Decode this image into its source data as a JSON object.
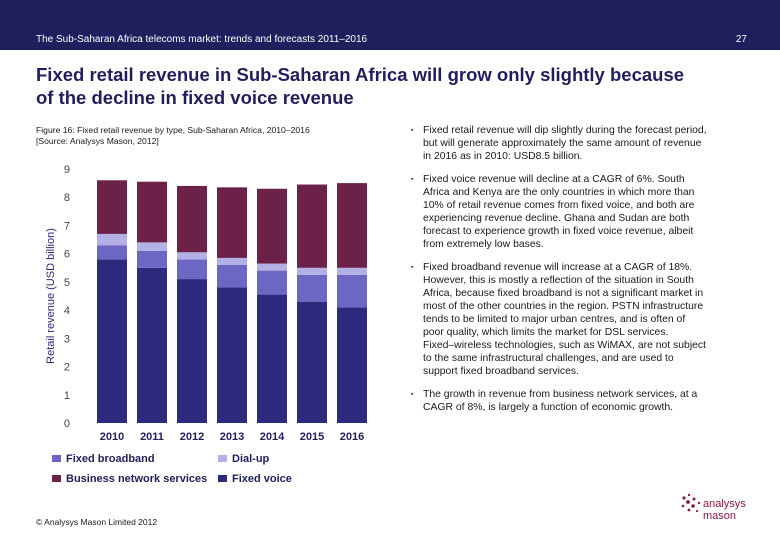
{
  "header": {
    "doc_title": "The Sub-Saharan Africa telecoms market: trends and forecasts 2011–2016",
    "page_number": "27"
  },
  "headline": {
    "line1": "Fixed retail revenue in Sub-Saharan Africa will grow only slightly because",
    "line2": "of the decline in fixed voice revenue"
  },
  "caption": {
    "line1": "Figure 16: Fixed retail revenue by type, Sub-Saharan Africa, 2010–2016",
    "line2": "[Source: Analysys Mason, 2012]"
  },
  "chart_data": {
    "type": "bar",
    "stacked": true,
    "categories": [
      "2010",
      "2011",
      "2012",
      "2013",
      "2014",
      "2015",
      "2016"
    ],
    "series": [
      {
        "name": "Fixed voice",
        "color": "#2b2a7c",
        "values": [
          5.8,
          5.5,
          5.1,
          4.8,
          4.55,
          4.3,
          4.1
        ]
      },
      {
        "name": "Fixed broadband",
        "color": "#6d67c4",
        "values": [
          0.5,
          0.6,
          0.7,
          0.8,
          0.85,
          0.95,
          1.15
        ]
      },
      {
        "name": "Dial-up",
        "color": "#b3b0e6",
        "values": [
          0.4,
          0.3,
          0.25,
          0.25,
          0.25,
          0.25,
          0.25
        ]
      },
      {
        "name": "Business network services",
        "color": "#6b2148",
        "values": [
          1.9,
          2.15,
          2.35,
          2.5,
          2.65,
          2.95,
          3.0
        ]
      }
    ],
    "ylabel": "Retail revenue (USD billion)",
    "xlabel": "",
    "ylim": [
      0,
      9
    ],
    "yticks": [
      0,
      1,
      2,
      3,
      4,
      5,
      6,
      7,
      8,
      9
    ],
    "grid": false,
    "legend_position": "bottom",
    "legend_order": [
      1,
      2,
      3,
      0
    ]
  },
  "bullets": [
    {
      "marker": "▪",
      "lines": [
        "Fixed retail revenue will dip slightly during the forecast period,",
        "but will generate approximately the same amount of revenue",
        "in 2016 as in 2010: USD8.5 billion."
      ]
    },
    {
      "marker": "▪",
      "lines": [
        "Fixed voice revenue will decline at a CAGR of 6%. South",
        "Africa and Kenya are the only countries in which more than",
        "10% of retail revenue comes from fixed voice, and both are",
        "experiencing revenue decline. Ghana and Sudan are both",
        "forecast to experience growth in fixed voice revenue, albeit",
        "from extremely low bases."
      ]
    },
    {
      "marker": "▪",
      "lines": [
        "Fixed broadband revenue will increase at a CAGR of 18%.",
        "However, this is mostly a reflection of the situation in South",
        "Africa, because fixed broadband is not a significant market in",
        "most of the other countries in the region. PSTN infrastructure",
        "tends to be limited to major urban centres, and is often of",
        "poor quality, which limits the market for DSL services.",
        "Fixed–wireless technologies, such as WiMAX, are not subject",
        "to the same infrastructural challenges, and are used to",
        "support fixed broadband services."
      ]
    },
    {
      "marker": "▪",
      "lines": [
        "The growth in revenue from business network services, at a",
        "CAGR of 8%, is largely a function of economic growth."
      ]
    }
  ],
  "footer": {
    "copyright": "© Analysys Mason Limited 2012"
  },
  "logo": {
    "line1": "analysys",
    "line2": "mason",
    "color": "#8b1a4a"
  }
}
